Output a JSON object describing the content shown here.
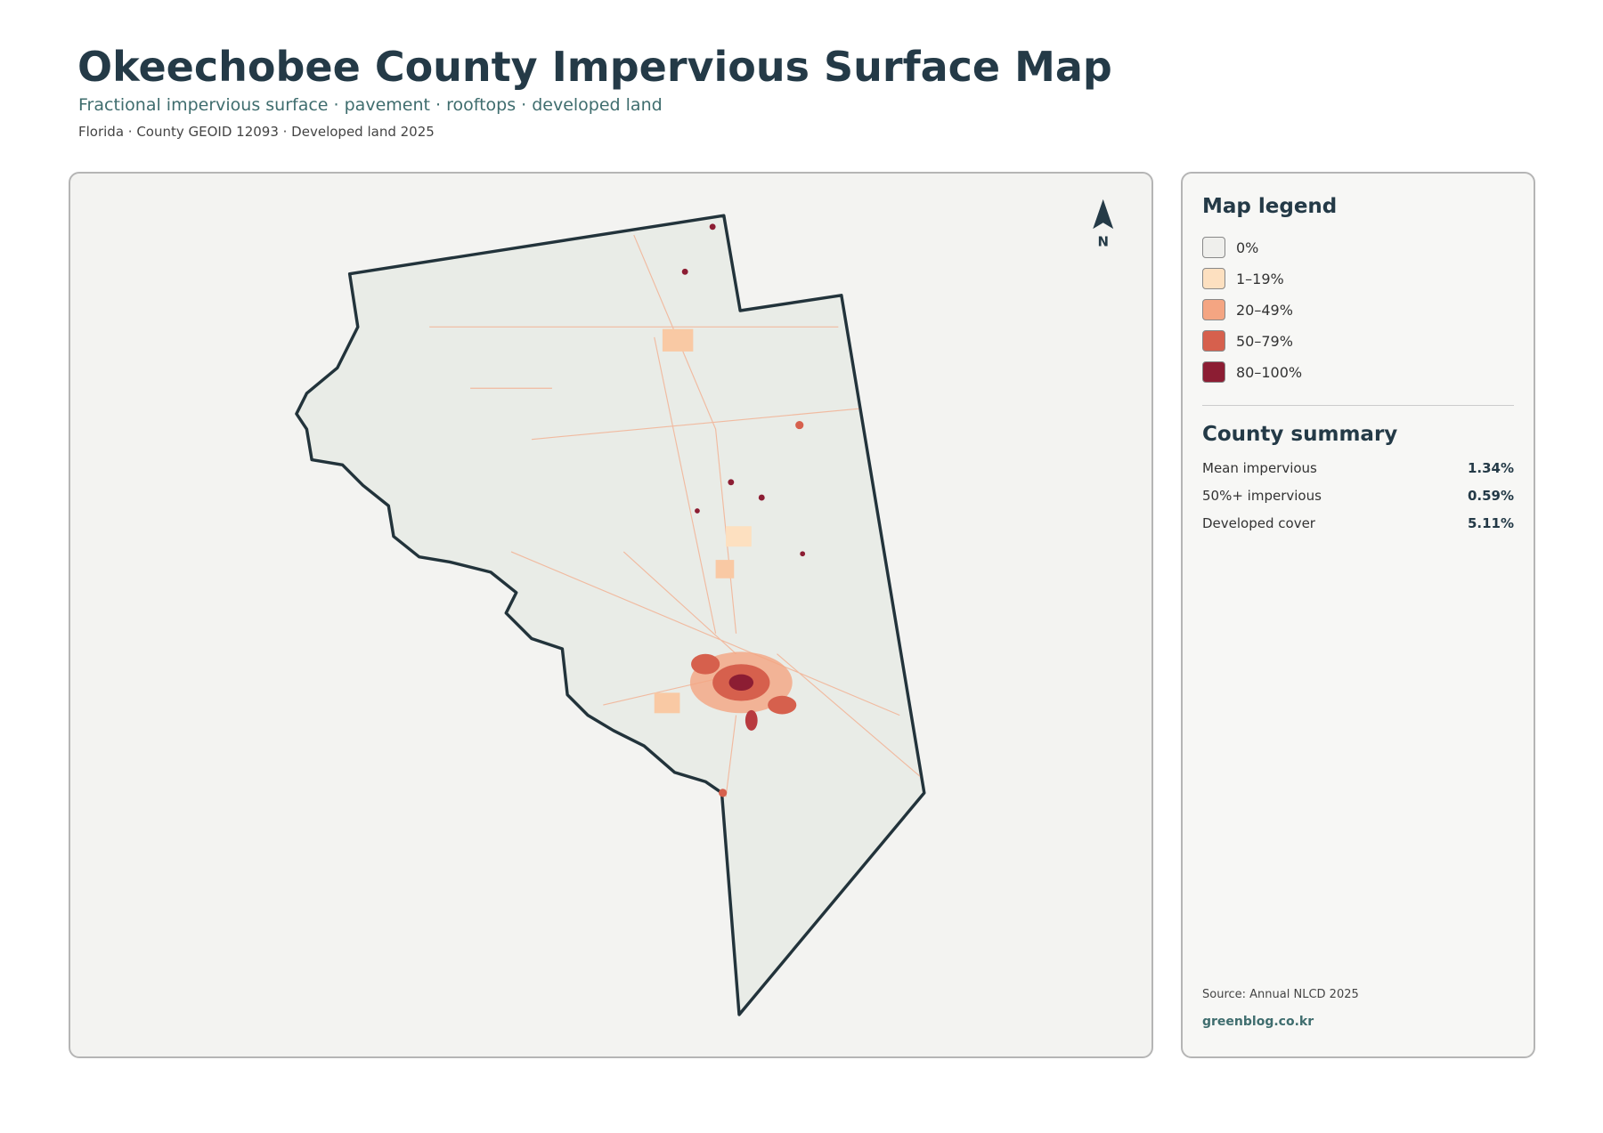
{
  "header": {
    "title": "Okeechobee County Impervious Surface Map",
    "subtitle": "Fractional impervious surface · pavement · rooftops · developed land",
    "meta": "Florida · County GEOID 12093 · Developed land 2025"
  },
  "map": {
    "north_label": "N"
  },
  "legend": {
    "title": "Map legend",
    "items": [
      {
        "label": "0%",
        "color": "#efefec"
      },
      {
        "label": "1–19%",
        "color": "#fde0c0"
      },
      {
        "label": "20–49%",
        "color": "#f4a582"
      },
      {
        "label": "50–79%",
        "color": "#d6604d"
      },
      {
        "label": "80–100%",
        "color": "#8c1d33"
      }
    ]
  },
  "summary": {
    "title": "County summary",
    "rows": [
      {
        "label": "Mean impervious",
        "value": "1.34%"
      },
      {
        "label": "50%+ impervious",
        "value": "0.59%"
      },
      {
        "label": "Developed cover",
        "value": "5.11%"
      }
    ]
  },
  "footer": {
    "source": "Source: Annual NLCD 2025",
    "credit": "greenblog.co.kr"
  }
}
